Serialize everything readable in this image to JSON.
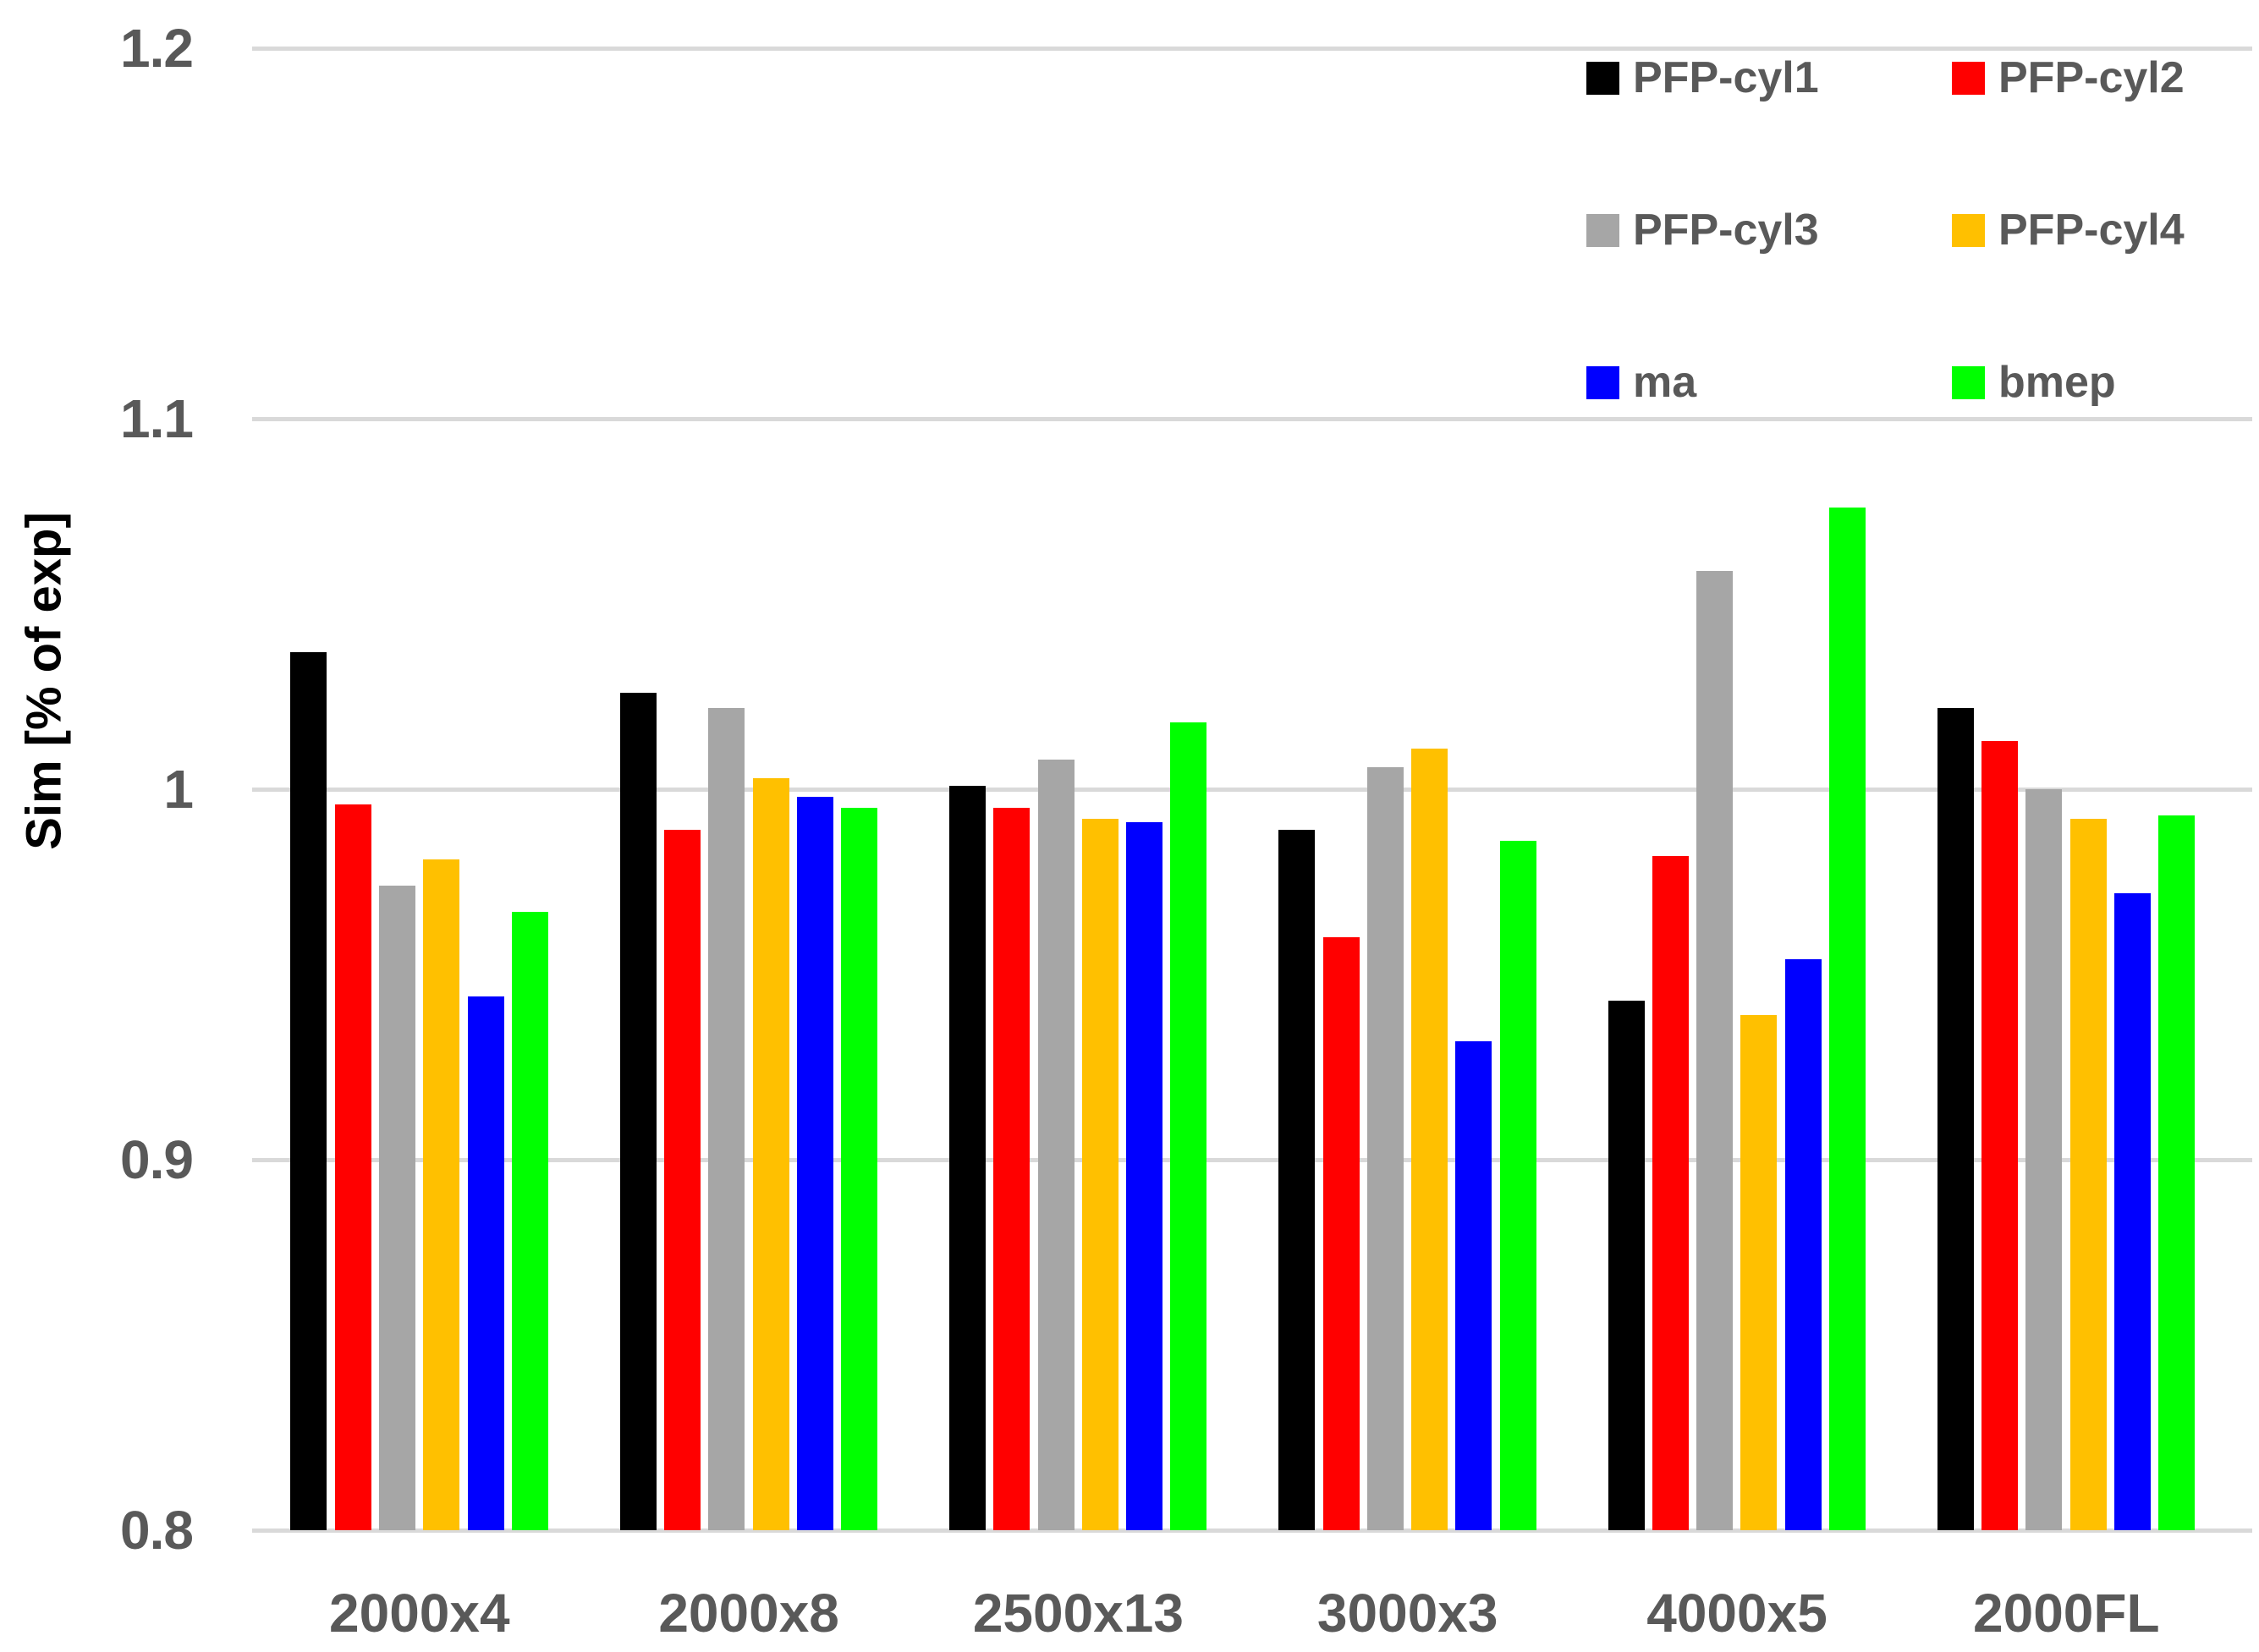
{
  "chart_data": {
    "type": "bar",
    "title": "",
    "xlabel": "",
    "ylabel": "Sim [% of exp]",
    "ylim": [
      0.8,
      1.2
    ],
    "grid": "horizontal",
    "grid_color": "#D9D9D9",
    "tick_text_color": "#595959",
    "axis_title_color": "#000000",
    "background_color": "#FFFFFF",
    "legend_position": "top-right",
    "legend_columns": 2,
    "yticks": [
      {
        "value": 1.2,
        "label": "1.2"
      },
      {
        "value": 1.1,
        "label": "1.1"
      },
      {
        "value": 1.0,
        "label": "1"
      },
      {
        "value": 0.9,
        "label": "0.9"
      },
      {
        "value": 0.8,
        "label": "0.8"
      }
    ],
    "categories": [
      "2000x4",
      "2000x8",
      "2500x13",
      "3000x3",
      "4000x5",
      "2000FL"
    ],
    "series": [
      {
        "name": "PFP-cyl1",
        "color": "#000000",
        "values": [
          1.037,
          1.026,
          1.001,
          0.989,
          0.943,
          1.022
        ]
      },
      {
        "name": "PFP-cyl2",
        "color": "#FF0000",
        "values": [
          0.996,
          0.989,
          0.995,
          0.96,
          0.982,
          1.013
        ]
      },
      {
        "name": "PFP-cyl3",
        "color": "#A6A6A6",
        "values": [
          0.974,
          1.022,
          1.008,
          1.006,
          1.059,
          1.0
        ]
      },
      {
        "name": "PFP-cyl4",
        "color": "#FFC000",
        "values": [
          0.981,
          1.003,
          0.992,
          1.011,
          0.939,
          0.992
        ]
      },
      {
        "name": "ma",
        "color": "#0000FF",
        "values": [
          0.944,
          0.998,
          0.991,
          0.932,
          0.954,
          0.972
        ]
      },
      {
        "name": "bmep",
        "color": "#00FF00",
        "values": [
          0.967,
          0.995,
          1.018,
          0.986,
          1.076,
          0.993
        ]
      }
    ]
  }
}
